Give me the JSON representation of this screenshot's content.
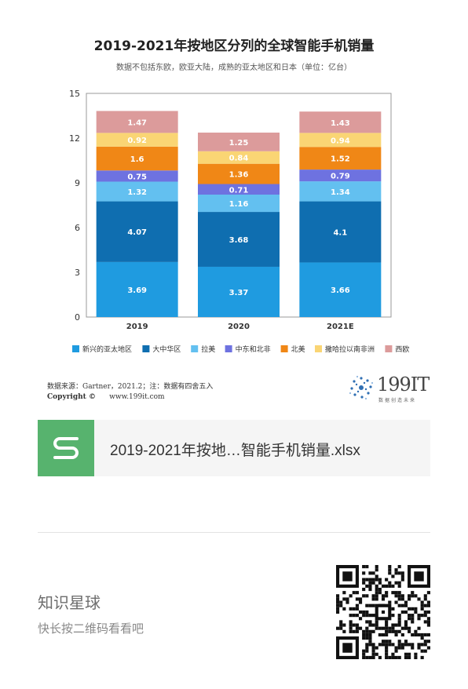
{
  "chart_data": {
    "type": "bar",
    "stacked": true,
    "title": "2019-2021年按地区分列的全球智能手机销量",
    "subtitle": "数据不包括东欧，欧亚大陆，成熟的亚太地区和日本（单位：亿台）",
    "categories": [
      "2019",
      "2020",
      "2021E"
    ],
    "ylim": [
      0,
      15
    ],
    "yticks": [
      "0",
      "3",
      "6",
      "9",
      "12",
      "15"
    ],
    "legend_position": "bottom",
    "grid": false,
    "series": [
      {
        "name": "新兴的亚太地区",
        "color": "#1f9be0",
        "values": [
          3.69,
          3.37,
          3.66
        ],
        "labels": [
          "3.69",
          "3.37",
          "3.66"
        ]
      },
      {
        "name": "大中华区",
        "color": "#0f6eb0",
        "values": [
          4.07,
          3.68,
          4.1
        ],
        "labels": [
          "4.07",
          "3.68",
          "4.1"
        ]
      },
      {
        "name": "拉美",
        "color": "#63c0f0",
        "values": [
          1.32,
          1.16,
          1.34
        ],
        "labels": [
          "1.32",
          "1.16",
          "1.34"
        ]
      },
      {
        "name": "中东和北非",
        "color": "#6e72e0",
        "values": [
          0.75,
          0.71,
          0.79
        ],
        "labels": [
          "0.75",
          "0.71",
          "0.79"
        ]
      },
      {
        "name": "北美",
        "color": "#f08716",
        "values": [
          1.6,
          1.36,
          1.52
        ],
        "labels": [
          "1.6",
          "1.36",
          "1.52"
        ]
      },
      {
        "name": "撒哈拉以南非洲",
        "color": "#fad574",
        "values": [
          0.92,
          0.84,
          0.94
        ],
        "labels": [
          "0.92",
          "0.84",
          "0.94"
        ]
      },
      {
        "name": "西欧",
        "color": "#dc9b9b",
        "values": [
          1.47,
          1.25,
          1.43
        ],
        "labels": [
          "1.47",
          "1.25",
          "1.43"
        ]
      }
    ]
  },
  "source_line": "数据来源：Gartner，2021.2；注：数据有四舍五入",
  "copyright": {
    "label": "Copyright ©",
    "site": "www.199it.com"
  },
  "logo": {
    "text": "199IT",
    "tagline": "数据创造未来"
  },
  "attachment": {
    "filename": "2019-2021年按地…智能手机销量.xlsx",
    "icon": "spreadsheet-s-icon",
    "icon_color": "#57b36e"
  },
  "planet": {
    "title": "知识星球",
    "subtitle": "快长按二维码看看吧"
  },
  "qr": {
    "icon": "qr-code-icon"
  }
}
